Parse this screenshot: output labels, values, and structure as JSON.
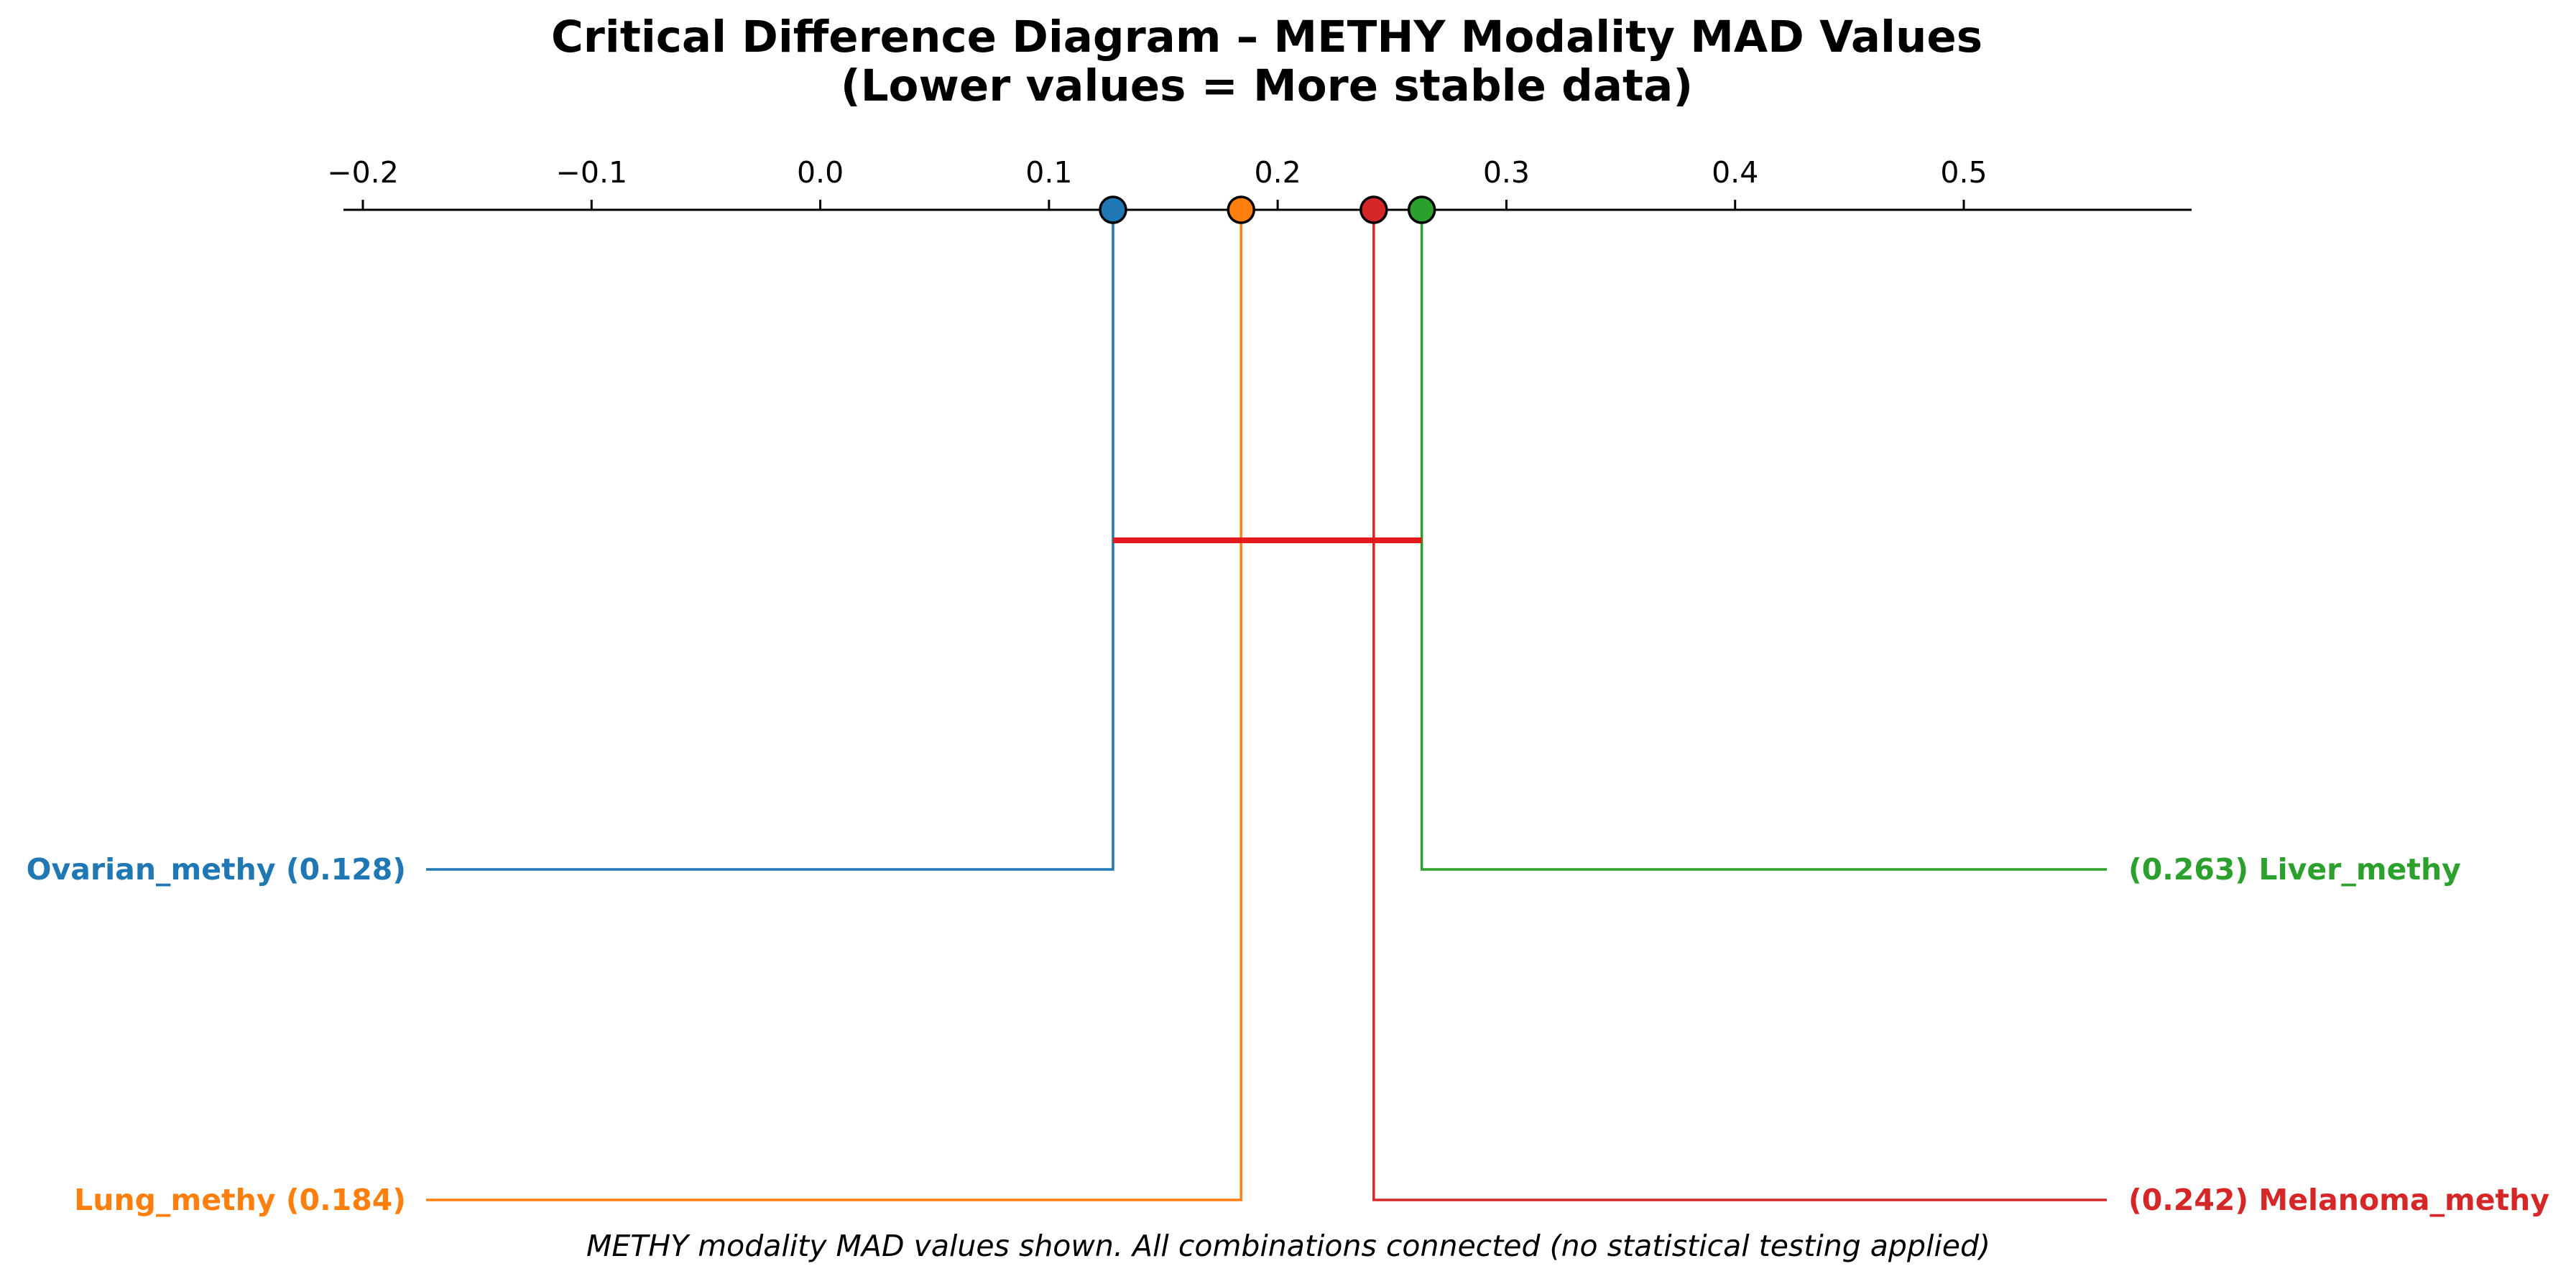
{
  "chart_data": {
    "type": "critical-difference",
    "title_line1": "Critical Difference Diagram – METHY Modality MAD Values",
    "title_line2": "(Lower values = More stable data)",
    "axis": {
      "xlim": [
        -0.208,
        0.6
      ],
      "ticks": [
        -0.2,
        -0.1,
        0.0,
        0.1,
        0.2,
        0.3,
        0.4,
        0.5
      ],
      "tick_labels": [
        "−0.2",
        "−0.1",
        "0.0",
        "0.1",
        "0.2",
        "0.3",
        "0.4",
        "0.5"
      ],
      "position": "top"
    },
    "series": [
      {
        "name": "Ovarian_methy",
        "value": 0.128,
        "value_label": "0.128",
        "color": "#1f77b4",
        "side": "left"
      },
      {
        "name": "Lung_methy",
        "value": 0.184,
        "value_label": "0.184",
        "color": "#ff7f0e",
        "side": "left"
      },
      {
        "name": "Liver_methy",
        "value": 0.263,
        "value_label": "0.263",
        "color": "#2ca02c",
        "side": "right"
      },
      {
        "name": "Melanoma_methy",
        "value": 0.242,
        "value_label": "0.242",
        "color": "#d62728",
        "side": "right"
      }
    ],
    "cliques": [
      {
        "from": 0.128,
        "to": 0.263,
        "color": "#e31a1c"
      }
    ],
    "footnote": "METHY modality MAD values shown. All combinations connected (no statistical testing applied)"
  }
}
